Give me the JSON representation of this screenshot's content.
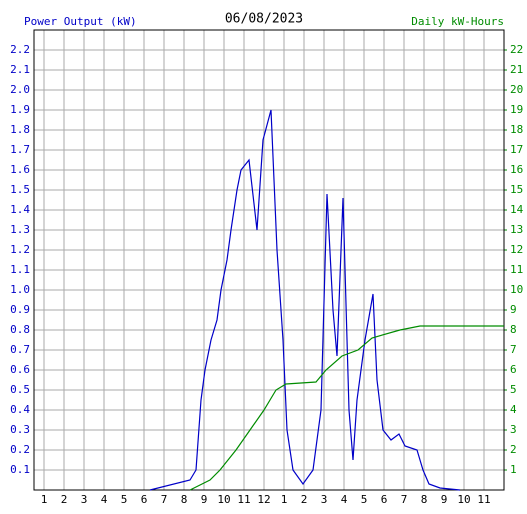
{
  "chart_data": {
    "type": "line",
    "title": "06/08/2023",
    "y_label": "Power Output (kW)",
    "y2_label": "Daily kW-Hours",
    "xlim": [
      0.5,
      24
    ],
    "xticks": [
      1,
      2,
      3,
      4,
      5,
      6,
      7,
      8,
      9,
      10,
      11,
      12,
      {
        "value": 13,
        "label": "1"
      },
      {
        "value": 14,
        "label": "2"
      },
      {
        "value": 15,
        "label": "3"
      },
      {
        "value": 16,
        "label": "4"
      },
      {
        "value": 17,
        "label": "5"
      },
      {
        "value": 18,
        "label": "6"
      },
      {
        "value": 19,
        "label": "7"
      },
      {
        "value": 20,
        "label": "8"
      },
      {
        "value": 21,
        "label": "9"
      },
      {
        "value": 22,
        "label": "10"
      },
      {
        "value": 23,
        "label": "11"
      }
    ],
    "ylim": [
      0,
      2.3
    ],
    "yticks": [
      0.1,
      0.2,
      0.3,
      0.4,
      0.5,
      0.6,
      0.7,
      0.8,
      0.9,
      {
        "value": 1,
        "label": "1.0"
      },
      1.1,
      1.2,
      1.3,
      1.4,
      1.5,
      1.6,
      1.7,
      1.8,
      1.9,
      {
        "value": 2,
        "label": "2.0"
      },
      2.1,
      2.2
    ],
    "y2lim": [
      0,
      23
    ],
    "y2ticks": [
      1,
      2,
      3,
      4,
      5,
      6,
      7,
      8,
      9,
      10,
      11,
      12,
      13,
      14,
      15,
      16,
      17,
      18,
      19,
      20,
      21,
      22
    ],
    "grid": true,
    "series": [
      {
        "name": "Power Output (kW)",
        "color": "#0000c8",
        "x": [
          6.3,
          8.3,
          8.6,
          8.85,
          9.05,
          9.35,
          9.65,
          9.85,
          10.15,
          10.35,
          10.65,
          10.85,
          11.25,
          11.65,
          11.95,
          12.35,
          12.65,
          12.95,
          13.15,
          13.45,
          13.95,
          14.45,
          14.85,
          15.15,
          15.45,
          15.65,
          15.95,
          16.25,
          16.45,
          16.65,
          17.05,
          17.45,
          17.65,
          17.95,
          18.35,
          18.75,
          19.05,
          19.65,
          19.95,
          20.25,
          20.8,
          21.8
        ],
        "values": [
          0,
          0.05,
          0.1,
          0.45,
          0.6,
          0.75,
          0.85,
          1.0,
          1.15,
          1.3,
          1.5,
          1.6,
          1.65,
          1.3,
          1.75,
          1.9,
          1.2,
          0.75,
          0.3,
          0.1,
          0.03,
          0.1,
          0.4,
          1.48,
          0.9,
          0.67,
          1.46,
          0.4,
          0.15,
          0.45,
          0.75,
          0.98,
          0.55,
          0.3,
          0.25,
          0.28,
          0.22,
          0.2,
          0.1,
          0.03,
          0.01,
          0
        ]
      },
      {
        "name": "Daily kW-Hours",
        "color": "#008c00",
        "axis": "y2",
        "x": [
          8.3,
          9.3,
          9.8,
          10.6,
          11.3,
          12.0,
          12.6,
          13.1,
          14.6,
          15.1,
          15.9,
          16.7,
          17.4,
          18.8,
          19.8,
          24
        ],
        "values": [
          0,
          0.5,
          1,
          2,
          3,
          4,
          5,
          5.3,
          5.4,
          6,
          6.7,
          7,
          7.6,
          8,
          8.2,
          8.2
        ]
      }
    ]
  }
}
